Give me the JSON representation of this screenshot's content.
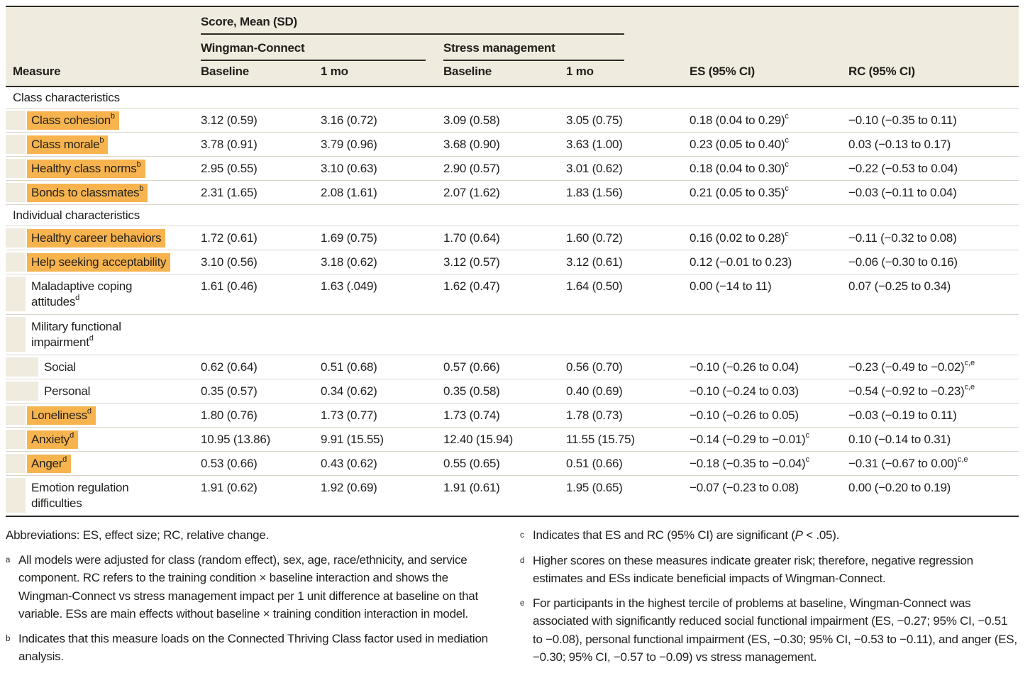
{
  "colors": {
    "highlight": "#f7b44e",
    "header_beige": "#efebdf",
    "dark_rule": "#2e2b26",
    "row_separator": "#dad5ca",
    "text": "#211f1c"
  },
  "table": {
    "header": {
      "measure": "Measure",
      "score_group": "Score, Mean (SD)",
      "group1": "Wingman-Connect",
      "group2": "Stress management",
      "baseline": "Baseline",
      "one_mo": "1 mo",
      "es": "ES (95% CI)",
      "rc": "RC (95% CI)"
    },
    "rows": [
      {
        "type": "section",
        "label": "Class characteristics"
      },
      {
        "type": "row",
        "indent": 1,
        "highlight": true,
        "label_lines": [
          "Class cohesion"
        ],
        "label_sup": "b",
        "values": [
          {
            "t": "3.12 (0.59)"
          },
          {
            "t": "3.16 (0.72)"
          },
          {
            "t": "3.09 (0.58)"
          },
          {
            "t": "3.05 (0.75)"
          },
          {
            "t": "0.18 (0.04 to 0.29)",
            "sup": "c"
          },
          {
            "t": "−0.10 (−0.35 to 0.11)"
          }
        ]
      },
      {
        "type": "row",
        "indent": 1,
        "highlight": true,
        "label_lines": [
          "Class morale"
        ],
        "label_sup": "b",
        "values": [
          {
            "t": "3.78 (0.91)"
          },
          {
            "t": "3.79 (0.96)"
          },
          {
            "t": "3.68 (0.90)"
          },
          {
            "t": "3.63 (1.00)"
          },
          {
            "t": "0.23 (0.05 to 0.40)",
            "sup": "c"
          },
          {
            "t": "0.03 (−0.13 to 0.17)"
          }
        ]
      },
      {
        "type": "row",
        "indent": 1,
        "highlight": true,
        "label_lines": [
          "Healthy class norms"
        ],
        "label_sup": "b",
        "values": [
          {
            "t": "2.95 (0.55)"
          },
          {
            "t": "3.10 (0.63)"
          },
          {
            "t": "2.90 (0.57)"
          },
          {
            "t": "3.01 (0.62)"
          },
          {
            "t": "0.18 (0.04 to 0.30)",
            "sup": "c"
          },
          {
            "t": "−0.22 (−0.53 to 0.04)"
          }
        ]
      },
      {
        "type": "row",
        "indent": 1,
        "highlight": true,
        "label_lines": [
          "Bonds to classmates"
        ],
        "label_sup": "b",
        "values": [
          {
            "t": "2.31 (1.65)"
          },
          {
            "t": "2.08 (1.61)"
          },
          {
            "t": "2.07 (1.62)"
          },
          {
            "t": "1.83 (1.56)"
          },
          {
            "t": "0.21 (0.05 to 0.35)",
            "sup": "c"
          },
          {
            "t": "−0.03 (−0.11 to 0.04)"
          }
        ]
      },
      {
        "type": "section",
        "label": "Individual characteristics"
      },
      {
        "type": "row",
        "indent": 1,
        "highlight": true,
        "label_lines": [
          "Healthy career behaviors"
        ],
        "label_sup": "",
        "values": [
          {
            "t": "1.72 (0.61)"
          },
          {
            "t": "1.69 (0.75)"
          },
          {
            "t": "1.70 (0.64)"
          },
          {
            "t": "1.60 (0.72)"
          },
          {
            "t": "0.16 (0.02 to 0.28)",
            "sup": "c"
          },
          {
            "t": "−0.11 (−0.32 to 0.08)"
          }
        ]
      },
      {
        "type": "row",
        "indent": 1,
        "highlight": true,
        "label_lines": [
          "Help seeking acceptability"
        ],
        "label_sup": "",
        "values": [
          {
            "t": "3.10 (0.56)"
          },
          {
            "t": "3.18 (0.62)"
          },
          {
            "t": "3.12 (0.57)"
          },
          {
            "t": "3.12 (0.61)"
          },
          {
            "t": "0.12 (−0.01 to 0.23)"
          },
          {
            "t": "−0.06 (−0.30 to 0.16)"
          }
        ]
      },
      {
        "type": "row",
        "indent": 1,
        "highlight": false,
        "label_lines": [
          "Maladaptive coping",
          "attitudes"
        ],
        "label_sup": "d",
        "values": [
          {
            "t": "1.61 (0.46)"
          },
          {
            "t": "1.63 (.049)"
          },
          {
            "t": "1.62 (0.47)"
          },
          {
            "t": "1.64 (0.50)"
          },
          {
            "t": "0.00 (−14 to 11)"
          },
          {
            "t": "0.07 (−0.25 to 0.34)"
          }
        ]
      },
      {
        "type": "row",
        "indent": 1,
        "highlight": false,
        "label_lines": [
          "Military functional",
          "impairment"
        ],
        "label_sup": "d",
        "values": [
          {
            "t": ""
          },
          {
            "t": ""
          },
          {
            "t": ""
          },
          {
            "t": ""
          },
          {
            "t": ""
          },
          {
            "t": ""
          }
        ]
      },
      {
        "type": "row",
        "indent": 2,
        "highlight": false,
        "label_lines": [
          "Social"
        ],
        "label_sup": "",
        "values": [
          {
            "t": "0.62 (0.64)"
          },
          {
            "t": "0.51 (0.68)"
          },
          {
            "t": "0.57 (0.66)"
          },
          {
            "t": "0.56 (0.70)"
          },
          {
            "t": "−0.10 (−0.26 to 0.04)"
          },
          {
            "t": "−0.23 (−0.49 to −0.02)",
            "sup": "c,e"
          }
        ]
      },
      {
        "type": "row",
        "indent": 2,
        "highlight": false,
        "label_lines": [
          "Personal"
        ],
        "label_sup": "",
        "values": [
          {
            "t": "0.35 (0.57)"
          },
          {
            "t": "0.34 (0.62)"
          },
          {
            "t": "0.35 (0.58)"
          },
          {
            "t": "0.40 (0.69)"
          },
          {
            "t": "−0.10 (−0.24 to 0.03)"
          },
          {
            "t": "−0.54 (−0.92 to −0.23)",
            "sup": "c,e"
          }
        ]
      },
      {
        "type": "row",
        "indent": 1,
        "highlight": true,
        "label_lines": [
          "Loneliness"
        ],
        "label_sup": "d",
        "values": [
          {
            "t": "1.80 (0.76)"
          },
          {
            "t": "1.73 (0.77)"
          },
          {
            "t": "1.73 (0.74)"
          },
          {
            "t": "1.78 (0.73)"
          },
          {
            "t": "−0.10 (−0.26 to 0.05)"
          },
          {
            "t": "−0.03 (−0.19 to 0.11)"
          }
        ]
      },
      {
        "type": "row",
        "indent": 1,
        "highlight": true,
        "label_lines": [
          "Anxiety"
        ],
        "label_sup": "d",
        "values": [
          {
            "t": "10.95 (13.86)"
          },
          {
            "t": "9.91 (15.55)"
          },
          {
            "t": "12.40 (15.94)"
          },
          {
            "t": "11.55 (15.75)"
          },
          {
            "t": "−0.14 (−0.29 to −0.01)",
            "sup": "c"
          },
          {
            "t": "0.10 (−0.14 to 0.31)"
          }
        ]
      },
      {
        "type": "row",
        "indent": 1,
        "highlight": true,
        "label_lines": [
          "Anger"
        ],
        "label_sup": "d",
        "values": [
          {
            "t": "0.53 (0.66)"
          },
          {
            "t": "0.43 (0.62)"
          },
          {
            "t": "0.55 (0.65)"
          },
          {
            "t": "0.51 (0.66)"
          },
          {
            "t": "−0.18 (−0.35 to −0.04)",
            "sup": "c"
          },
          {
            "t": "−0.31 (−0.67 to 0.00)",
            "sup": "c,e"
          }
        ]
      },
      {
        "type": "row",
        "indent": 1,
        "highlight": false,
        "label_lines": [
          "Emotion regulation",
          "difficulties"
        ],
        "label_sup": "",
        "values": [
          {
            "t": "1.91 (0.62)"
          },
          {
            "t": "1.92 (0.69)"
          },
          {
            "t": "1.91 (0.61)"
          },
          {
            "t": "1.95 (0.65)"
          },
          {
            "t": "−0.07 (−0.23 to 0.08)"
          },
          {
            "t": "0.00 (−0.20 to 0.19)"
          }
        ]
      }
    ]
  },
  "footnotes": {
    "abbreviations": "Abbreviations: ES, effect size; RC, relative change.",
    "left": [
      {
        "letter": "a",
        "text": "All models were adjusted for class (random effect), sex, age, race/ethnicity, and service component. RC refers to the training condition × baseline interaction and shows the Wingman-Connect vs stress management impact per 1 unit difference at baseline on that variable. ESs are main effects without baseline × training condition interaction in model."
      },
      {
        "letter": "b",
        "text": "Indicates that this measure loads on the Connected Thriving Class factor used in mediation analysis."
      }
    ],
    "right": [
      {
        "letter": "c",
        "parts": {
          "pre": "Indicates that ES and RC (95% CI) are significant (",
          "italic": "P",
          "post": " < .05)."
        }
      },
      {
        "letter": "d",
        "text": "Higher scores on these measures indicate greater risk; therefore, negative regression estimates and ESs indicate beneficial impacts of Wingman-Connect."
      },
      {
        "letter": "e",
        "text": "For participants in the highest tercile of problems at baseline, Wingman-Connect was associated with significantly reduced social functional impairment (ES, −0.27; 95% CI, −0.51 to −0.08), personal functional impairment (ES, −0.30; 95% CI, −0.53 to −0.11), and anger (ES, −0.30; 95% CI, −0.57 to −0.09) vs stress management."
      }
    ]
  }
}
